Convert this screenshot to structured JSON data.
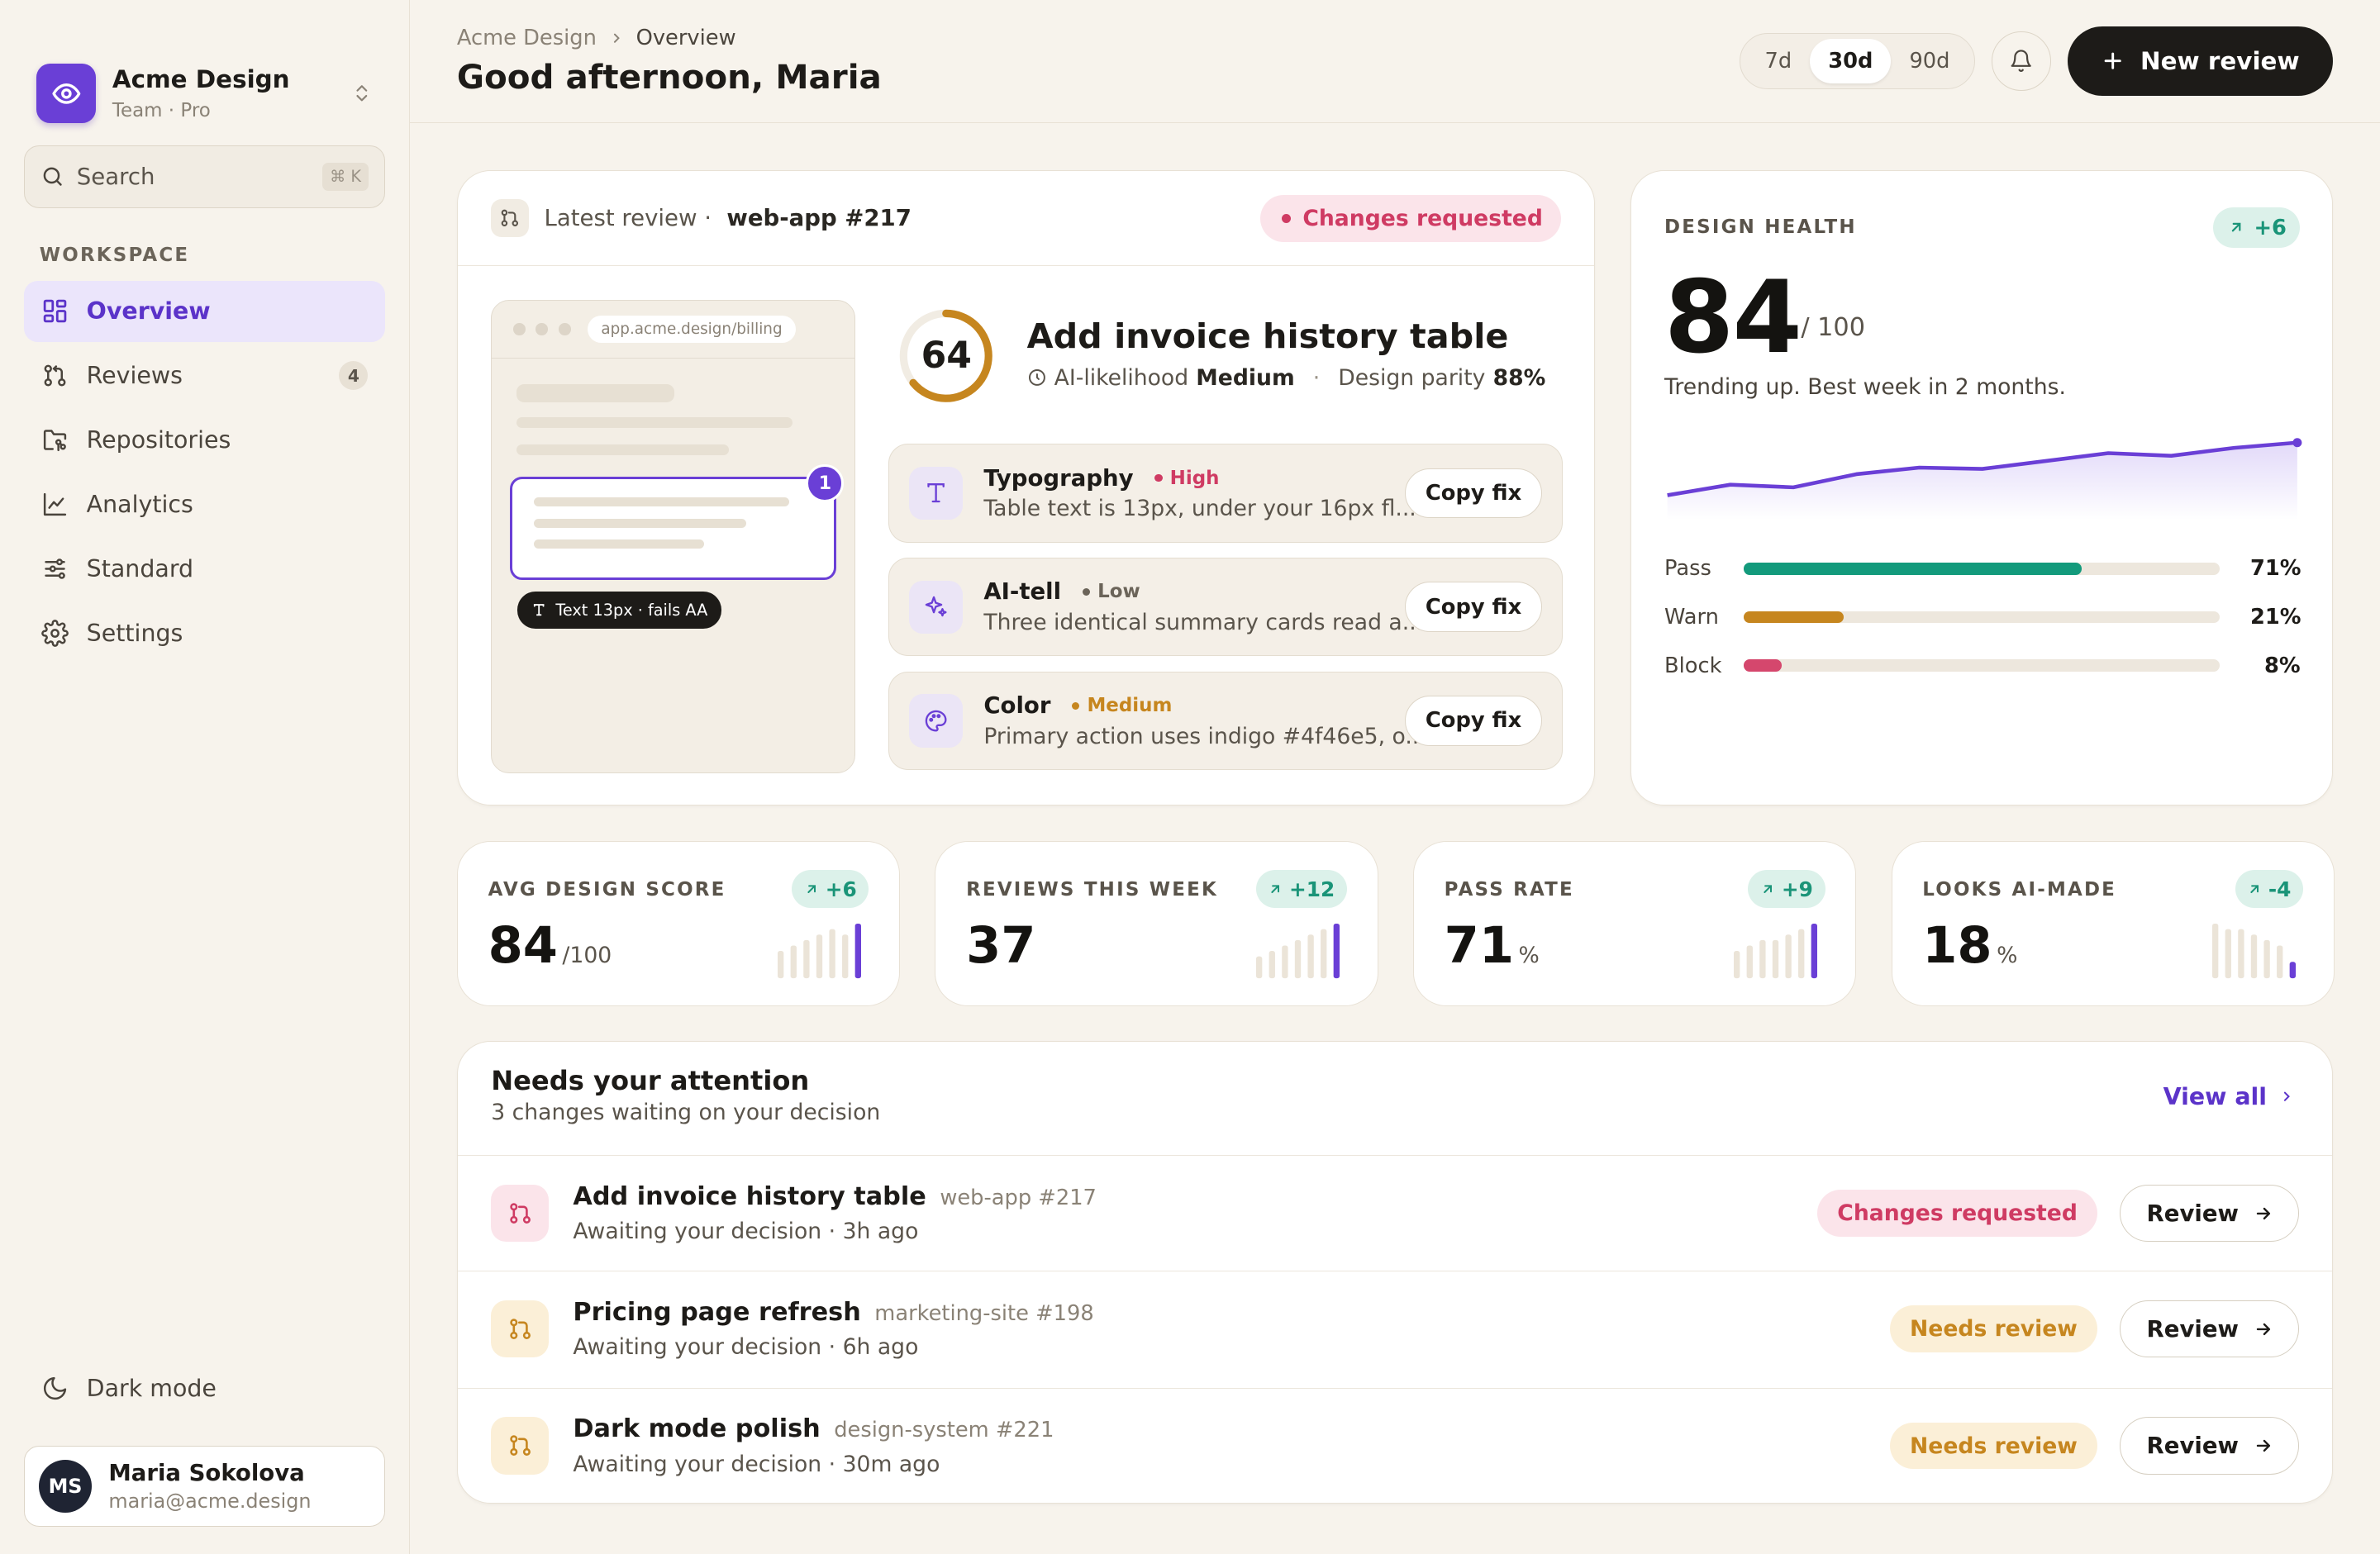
{
  "brand": {
    "name": "Acme Design",
    "plan": "Team · Pro",
    "icon": "eye-icon"
  },
  "search": {
    "placeholder": "Search",
    "shortcut": "⌘ K"
  },
  "sidebar": {
    "section_label": "WORKSPACE",
    "items": [
      {
        "label": "Overview",
        "icon": "grid-icon",
        "active": true
      },
      {
        "label": "Reviews",
        "icon": "git-pull-request-icon",
        "badge": "4"
      },
      {
        "label": "Repositories",
        "icon": "folder-git-icon"
      },
      {
        "label": "Analytics",
        "icon": "line-chart-icon"
      },
      {
        "label": "Standard",
        "icon": "sliders-icon"
      },
      {
        "label": "Settings",
        "icon": "gear-icon"
      }
    ],
    "dark_mode_label": "Dark mode",
    "user": {
      "initials": "MS",
      "name": "Maria Sokolova",
      "email": "maria@acme.design"
    }
  },
  "header": {
    "breadcrumb": [
      "Acme Design",
      "Overview"
    ],
    "greeting": "Good afternoon, Maria",
    "ranges": [
      "7d",
      "30d",
      "90d"
    ],
    "selected_range": "30d",
    "new_review_label": "New review"
  },
  "latest_review": {
    "label": "Latest review ·",
    "ref": "web-app #217",
    "status": "Changes requested",
    "preview": {
      "url": "app.acme.design/billing",
      "marker": "1",
      "tooltip": "Text 13px · fails AA"
    },
    "score": "64",
    "score_value": 64,
    "title": "Add invoice history table",
    "ai_likelihood_label": "AI-likelihood",
    "ai_likelihood_value": "Medium",
    "parity_label": "Design parity",
    "parity_value": "88%",
    "findings": [
      {
        "title": "Typography",
        "severity": "High",
        "severity_color": "#cf3b63",
        "desc": "Table text is 13px, under your 16px fl...",
        "icon": "type-icon",
        "action": "Copy fix"
      },
      {
        "title": "AI-tell",
        "severity": "Low",
        "severity_color": "#6b6459",
        "desc": "Three identical summary cards read a...",
        "icon": "sparkles-icon",
        "action": "Copy fix"
      },
      {
        "title": "Color",
        "severity": "Medium",
        "severity_color": "#c6861f",
        "desc": "Primary action uses indigo #4f46e5, o...",
        "icon": "palette-icon",
        "action": "Copy fix"
      }
    ]
  },
  "design_health": {
    "label": "DESIGN HEALTH",
    "trend": "+6",
    "score": "84",
    "out_of": "/ 100",
    "note": "Trending up. Best week in 2 months.",
    "spark": [
      12,
      20,
      18,
      28,
      33,
      32,
      38,
      44,
      42,
      48,
      52
    ],
    "bars": [
      {
        "name": "Pass",
        "pct": "71%",
        "value": 71,
        "color": "#139a7c"
      },
      {
        "name": "Warn",
        "pct": "21%",
        "value": 21,
        "color": "#c6861f"
      },
      {
        "name": "Block",
        "pct": "8%",
        "value": 8,
        "color": "#d5476d"
      }
    ]
  },
  "kpis": [
    {
      "label": "AVG DESIGN SCORE",
      "trend": "+6",
      "value": "84",
      "unit": "/100",
      "bars": [
        5,
        6,
        7,
        8,
        9,
        8,
        10
      ]
    },
    {
      "label": "REVIEWS THIS WEEK",
      "trend": "+12",
      "value": "37",
      "unit": "",
      "bars": [
        4,
        5,
        6,
        7,
        8,
        9,
        10
      ]
    },
    {
      "label": "PASS RATE",
      "trend": "+9",
      "value": "71",
      "unit": "%",
      "bars": [
        5,
        6,
        7,
        7,
        8,
        9,
        10
      ]
    },
    {
      "label": "LOOKS AI-MADE",
      "trend": "-4",
      "value": "18",
      "unit": "%",
      "bars": [
        10,
        9,
        9,
        8,
        7,
        6,
        3
      ]
    }
  ],
  "attention": {
    "title": "Needs your attention",
    "subtitle": "3 changes waiting on your decision",
    "view_all": "View all",
    "rows": [
      {
        "title": "Add invoice history table",
        "ref": "web-app #217",
        "sub": "Awaiting your decision · 3h ago",
        "status": "Changes requested",
        "tone": "red",
        "action": "Review"
      },
      {
        "title": "Pricing page refresh",
        "ref": "marketing-site #198",
        "sub": "Awaiting your decision · 6h ago",
        "status": "Needs review",
        "tone": "amber",
        "action": "Review"
      },
      {
        "title": "Dark mode polish",
        "ref": "design-system #221",
        "sub": "Awaiting your decision · 30m ago",
        "status": "Needs review",
        "tone": "amber",
        "action": "Review"
      }
    ]
  },
  "colors": {
    "accent": "#6a3fd6",
    "accent_soft": "#ebe5fb",
    "danger": "#cf3b63",
    "warning": "#c6861f",
    "success": "#139a7c",
    "ink": "#1d1b18",
    "background": "#f7f3ec"
  }
}
